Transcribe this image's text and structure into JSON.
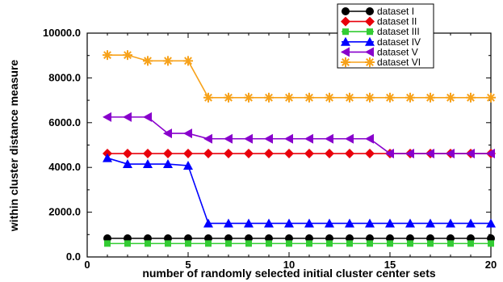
{
  "chart_data": {
    "type": "line",
    "xlabel": "number of randomly selected initial cluster center sets",
    "ylabel": "within cluster distance measure",
    "xlim": [
      0,
      20
    ],
    "ylim": [
      0,
      10000
    ],
    "x_ticks": [
      "0",
      "5",
      "10",
      "15",
      "20"
    ],
    "y_ticks": [
      "0.0",
      "2000.0",
      "4000.0",
      "6000.0",
      "8000.0",
      "10000.0"
    ],
    "x_tick_values": [
      0,
      5,
      10,
      15,
      20
    ],
    "y_tick_values": [
      0,
      2000,
      4000,
      6000,
      8000,
      10000
    ],
    "grid": false,
    "legend_position": "top-right",
    "x": [
      1,
      2,
      3,
      4,
      5,
      6,
      7,
      8,
      9,
      10,
      11,
      12,
      13,
      14,
      15,
      16,
      17,
      18,
      19,
      20
    ],
    "series": [
      {
        "name": "dataset I",
        "color": "#000000",
        "marker": "circle",
        "values": [
          830,
          830,
          830,
          830,
          830,
          830,
          830,
          830,
          830,
          830,
          830,
          830,
          830,
          830,
          830,
          830,
          830,
          830,
          830,
          830
        ]
      },
      {
        "name": "dataset II",
        "color": "#e8000b",
        "marker": "diamond",
        "values": [
          4620,
          4620,
          4620,
          4620,
          4620,
          4620,
          4620,
          4620,
          4620,
          4620,
          4620,
          4620,
          4620,
          4620,
          4620,
          4620,
          4620,
          4620,
          4620,
          4620
        ]
      },
      {
        "name": "dataset III",
        "color": "#33cc33",
        "marker": "square",
        "values": [
          600,
          600,
          600,
          600,
          600,
          600,
          600,
          600,
          600,
          600,
          600,
          600,
          600,
          600,
          600,
          600,
          600,
          600,
          600,
          600
        ]
      },
      {
        "name": "dataset IV",
        "color": "#0000ff",
        "marker": "triangle-up",
        "values": [
          4420,
          4150,
          4150,
          4150,
          4080,
          1500,
          1500,
          1500,
          1500,
          1500,
          1500,
          1500,
          1500,
          1500,
          1500,
          1500,
          1500,
          1500,
          1500,
          1500
        ]
      },
      {
        "name": "dataset V",
        "color": "#8800cc",
        "marker": "triangle-left",
        "values": [
          6250,
          6250,
          6250,
          5520,
          5520,
          5280,
          5280,
          5280,
          5280,
          5280,
          5280,
          5280,
          5280,
          5280,
          4620,
          4620,
          4620,
          4620,
          4620,
          4620
        ]
      },
      {
        "name": "dataset VI",
        "color": "#f7a21b",
        "marker": "star",
        "values": [
          9020,
          9020,
          8760,
          8760,
          8760,
          7120,
          7120,
          7120,
          7120,
          7120,
          7120,
          7120,
          7120,
          7120,
          7120,
          7120,
          7120,
          7120,
          7120,
          7120
        ]
      }
    ]
  }
}
